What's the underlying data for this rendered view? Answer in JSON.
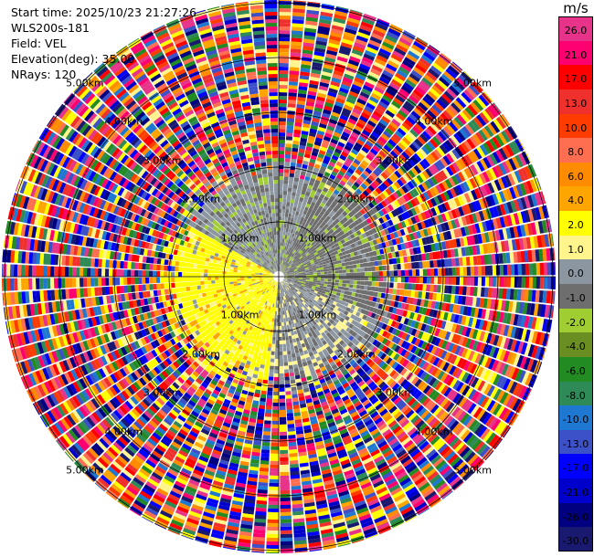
{
  "header": {
    "start_time": "Start time: 2025/10/23 21:27:26",
    "instrument": "WLS200s-181",
    "field": "Field: VEL",
    "elevation": "Elevation(deg): 35.00",
    "nrays": "NRays: 120"
  },
  "chart_data": {
    "type": "heatmap",
    "projection": "polar-ppi",
    "field": "VEL",
    "elevation_deg": 35.0,
    "nrays": 120,
    "range_rings_km": [
      1,
      2,
      3,
      4,
      5
    ],
    "ring_labels": [
      "1.00km",
      "1.00km",
      "1.00km",
      "1.00km",
      "2.00km",
      "2.00km",
      "2.00km",
      "2.00km",
      "3.00km",
      "3.00km",
      "3.00km",
      "3.00km",
      "4.00km",
      "4.00km",
      "4.00km",
      "4.00km",
      "5.00km",
      "5.00km",
      "5.00km",
      "5.00km"
    ],
    "colorbar": {
      "unit": "m/s",
      "levels": [
        "26.0",
        "21.0",
        "17.0",
        "13.0",
        "10.0",
        "8.0",
        "6.0",
        "4.0",
        "2.0",
        "1.0",
        "0.0",
        "-1.0",
        "-2.0",
        "-4.0",
        "-6.0",
        "-8.0",
        "-10.0",
        "-13.0",
        "-17.0",
        "-21.0",
        "-26.0",
        "-30.0"
      ],
      "colors": [
        "#e8338a",
        "#fe0070",
        "#ff0000",
        "#f0302c",
        "#ff3c00",
        "#ff6e50",
        "#ff8c00",
        "#ffa500",
        "#ffff00",
        "#fff58c",
        "#8c96a0",
        "#6e6e6e",
        "#a0cd32",
        "#6b8e23",
        "#228b22",
        "#2e8b57",
        "#1e78d2",
        "#3c50c8",
        "#0000ff",
        "#0000cd",
        "#000080",
        "#191970"
      ]
    }
  }
}
